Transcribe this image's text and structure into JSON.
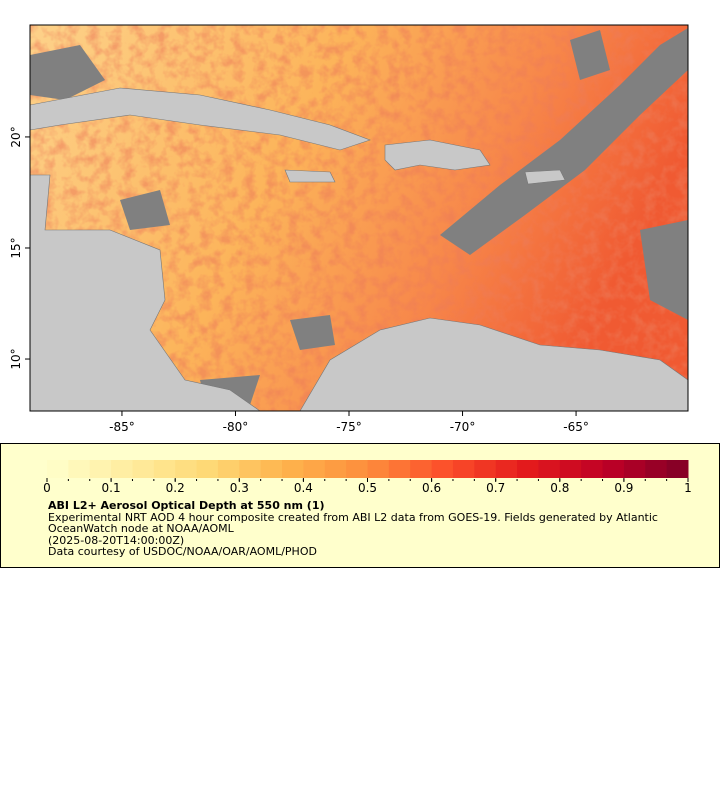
{
  "chart_data": {
    "type": "map",
    "xlim": [
      -89.05,
      -60.07
    ],
    "ylim": [
      7.66,
      25.04
    ],
    "xticks": [
      {
        "value": -85,
        "label": "-85°"
      },
      {
        "value": -80,
        "label": "-80°"
      },
      {
        "value": -75,
        "label": "-75°"
      },
      {
        "value": -70,
        "label": "-70°"
      },
      {
        "value": -65,
        "label": "-65°"
      }
    ],
    "yticks": [
      {
        "value": 10,
        "label": "10°"
      },
      {
        "value": 15,
        "label": "15°"
      },
      {
        "value": 20,
        "label": "20°"
      }
    ],
    "colorbar": {
      "lim": [
        0,
        1
      ],
      "ticks": [
        0,
        0.1,
        0.2,
        0.3,
        0.4,
        0.5,
        0.6,
        0.7,
        0.8,
        0.9,
        1
      ],
      "colors": [
        "#ffffcc",
        "#ffeda0",
        "#fed976",
        "#feb24c",
        "#fd8d3c",
        "#fc4e2a",
        "#e31a1c",
        "#bd0026",
        "#800026"
      ]
    },
    "legend": {
      "title": "ABI L2+ Aerosol Optical Depth at 550 nm (1)",
      "description": "Experimental NRT AOD 4 hour composite created from ABI L2 data from GOES-19. Fields generated by Atlantic OceanWatch node at NOAA/AOML",
      "time": "(2025-08-20T14:00:00Z)",
      "credit": "Data courtesy of USDOC/NOAA/OAR/AOML/PHOD"
    }
  }
}
